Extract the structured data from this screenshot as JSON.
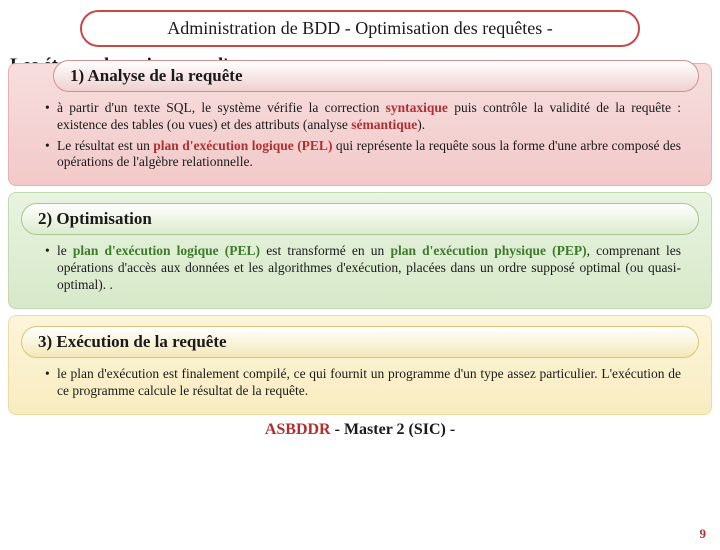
{
  "header": {
    "title": "Administration  de BDD  - Optimisation des requêtes -"
  },
  "subtitle": {
    "line1": "Les étapes de traitement d'une",
    "line2_prefix": "requ"
  },
  "sections": {
    "s1": {
      "head": "1)  Analyse de la requête",
      "b1_pre": "à partir d'un texte SQL, le système vérifie la correction ",
      "b1_syntax": "syntaxique",
      "b1_mid": " puis contrôle la validité de la requête : existence des tables (ou vues) et des attributs (analyse ",
      "b1_sem": "sémantique",
      "b1_post": ").",
      "b2_pre": "Le résultat est un ",
      "b2_pel_full": "plan d'exécution logique",
      "b2_pel_paren": " (PEL)",
      "b2_post": " qui représente la requête sous la forme d'une arbre composé des opérations de l'algèbre relationnelle."
    },
    "s2": {
      "head": "2) Optimisation",
      "b1_pre": "le ",
      "b1_pel_full": "plan d'exécution logique",
      "b1_pel_paren": " (PEL)",
      "b1_mid": " est transformé en un ",
      "b1_pep_full": "plan d'exécution physique",
      "b1_pep_paren": " (PEP)",
      "b1_post": ", comprenant les opérations d'accès aux données et les algorithmes d'exécution, placées dans un ordre supposé optimal (ou quasi-optimal). ."
    },
    "s3": {
      "head": "3) Exécution de la requête",
      "b1": "le plan d'exécution est finalement compilé, ce qui fournit un programme d'un type assez particulier. L'exécution de ce programme calcule le résultat de la requête."
    }
  },
  "footer": {
    "asb": "ASBDDR",
    "rest": " - Master 2 (SIC) -"
  },
  "page": "9",
  "colors": {
    "accent_red": "#b03030",
    "accent_green": "#3d7a2a"
  }
}
